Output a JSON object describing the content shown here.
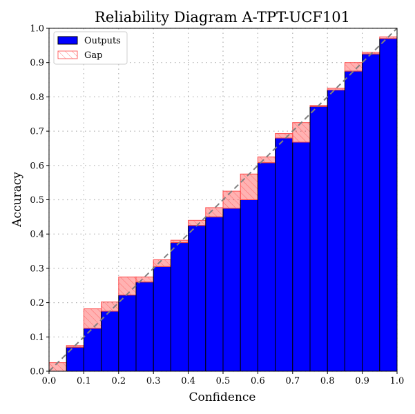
{
  "chart_data": {
    "type": "bar",
    "title": "Reliability Diagram A-TPT-UCF101",
    "xlabel": "Confidence",
    "ylabel": "Accuracy",
    "xlim": [
      0.0,
      1.0
    ],
    "ylim": [
      0.0,
      1.0
    ],
    "grid": true,
    "legend_position": "top-left",
    "bin_width": 0.05,
    "bin_lefts": [
      0.0,
      0.05,
      0.1,
      0.15,
      0.2,
      0.25,
      0.3,
      0.35,
      0.4,
      0.45,
      0.5,
      0.55,
      0.6,
      0.65,
      0.7,
      0.75,
      0.8,
      0.85,
      0.9,
      0.95
    ],
    "series": [
      {
        "name": "Outputs",
        "color": "#0000ff",
        "values": [
          0.0,
          0.07,
          0.125,
          0.175,
          0.222,
          0.26,
          0.305,
          0.375,
          0.425,
          0.45,
          0.475,
          0.5,
          0.608,
          0.68,
          0.668,
          0.772,
          0.82,
          0.875,
          0.925,
          0.97
        ]
      },
      {
        "name": "Gap",
        "color": "#ff0000",
        "values": [
          0.025,
          0.075,
          0.182,
          0.202,
          0.275,
          0.275,
          0.325,
          0.382,
          0.44,
          0.477,
          0.525,
          0.575,
          0.625,
          0.693,
          0.725,
          0.775,
          0.825,
          0.9,
          0.93,
          0.975
        ]
      }
    ],
    "diagonal": {
      "color": "#808080",
      "style": "dashed"
    },
    "xticks": [
      "0.0",
      "0.1",
      "0.2",
      "0.3",
      "0.4",
      "0.5",
      "0.6",
      "0.7",
      "0.8",
      "0.9",
      "1.0"
    ],
    "yticks": [
      "0.0",
      "0.1",
      "0.2",
      "0.3",
      "0.4",
      "0.5",
      "0.6",
      "0.7",
      "0.8",
      "0.9",
      "1.0"
    ],
    "legend": [
      {
        "label": "Outputs",
        "swatch": "outputs"
      },
      {
        "label": "Gap",
        "swatch": "gap"
      }
    ]
  }
}
